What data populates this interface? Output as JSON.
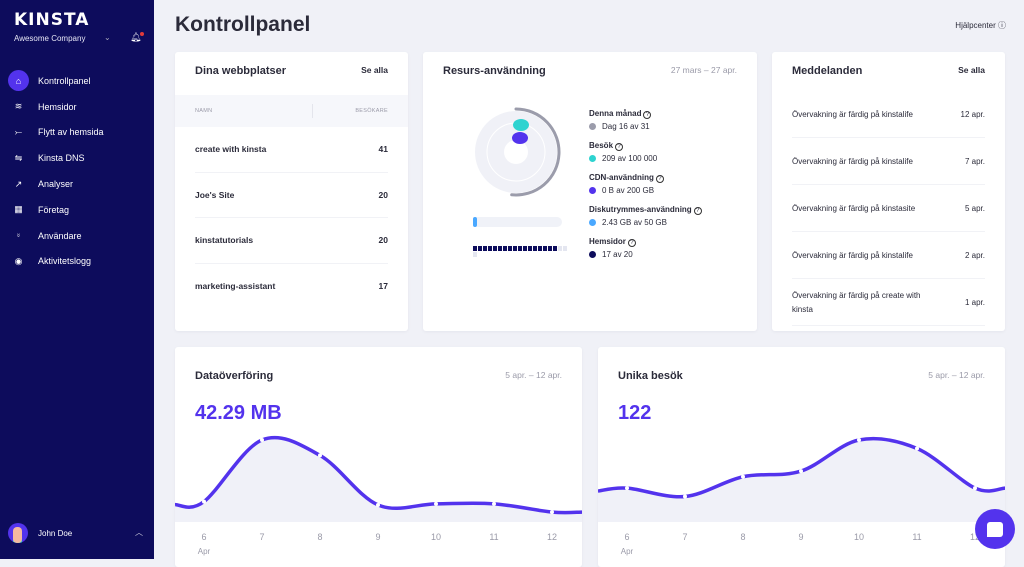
{
  "sidebar": {
    "logo": "KINSTA",
    "company": "Awesome Company",
    "items": [
      {
        "label": "Kontrollpanel",
        "icon": "home-icon",
        "glyph": "⌂"
      },
      {
        "label": "Hemsidor",
        "icon": "layers-icon",
        "glyph": "≋"
      },
      {
        "label": "Flytt av hemsida",
        "icon": "migrate-icon",
        "glyph": "⤚"
      },
      {
        "label": "Kinsta DNS",
        "icon": "dns-icon",
        "glyph": "⇋"
      },
      {
        "label": "Analyser",
        "icon": "trend-icon",
        "glyph": "↗"
      },
      {
        "label": "Företag",
        "icon": "building-icon",
        "glyph": "▦"
      },
      {
        "label": "Användare",
        "icon": "add-user-icon",
        "glyph": "⍤"
      },
      {
        "label": "Aktivitetslogg",
        "icon": "eye-icon",
        "glyph": "◉"
      }
    ],
    "user": "John Doe"
  },
  "header": {
    "title": "Kontrollpanel",
    "help": "Hjälpcenter"
  },
  "sites": {
    "title": "Dina webbplatser",
    "see_all": "Se alla",
    "col_name": "NAMN",
    "col_visitors": "BESÖKARE",
    "rows": [
      {
        "name": "create with kinsta",
        "visitors": "41"
      },
      {
        "name": "Joe's Site",
        "visitors": "20"
      },
      {
        "name": "kinstatutorials",
        "visitors": "20"
      },
      {
        "name": "marketing-assistant",
        "visitors": "17"
      }
    ]
  },
  "resources": {
    "title": "Resurs-användning",
    "range": "27 mars – 27 apr.",
    "items": [
      {
        "label": "Denna månad",
        "value": "Dag 16 av 31",
        "color": "#9b9cab",
        "fraction": 0.516
      },
      {
        "label": "Besök",
        "value": "209 av 100 000",
        "color": "#2ed3d0",
        "fraction": 0.002
      },
      {
        "label": "CDN-användning",
        "value": "0 B av 200 GB",
        "color": "#5333ed",
        "fraction": 0
      },
      {
        "label": "Diskutrymmes-användning",
        "value": "2.43 GB av 50 GB",
        "color": "#4aa8ff",
        "fraction": 0.049
      },
      {
        "label": "Hemsidor",
        "value": "17 av 20",
        "color": "#0d0c5c",
        "fraction": 0.85
      }
    ]
  },
  "messages": {
    "title": "Meddelanden",
    "see_all": "Se alla",
    "items": [
      {
        "text": "Övervakning är färdig på kinstalife",
        "date": "12 apr."
      },
      {
        "text": "Övervakning är färdig på kinstalife",
        "date": "7 apr."
      },
      {
        "text": "Övervakning är färdig på kinstasite",
        "date": "5 apr."
      },
      {
        "text": "Övervakning är färdig på kinstalife",
        "date": "2 apr."
      },
      {
        "text": "Övervakning är färdig på create with kinsta",
        "date": "1 apr."
      }
    ]
  },
  "chart_data": [
    {
      "type": "area",
      "title": "Dataöverföring",
      "range": "5 apr. – 12 apr.",
      "total": "42.29 MB",
      "categories": [
        "6",
        "7",
        "8",
        "9",
        "10",
        "11",
        "12"
      ],
      "month_label": "Apr",
      "values": [
        3.7,
        14.9,
        12.1,
        3.1,
        3.3,
        3.3,
        1.8
      ],
      "color": "#5333ed"
    },
    {
      "type": "area",
      "title": "Unika besök",
      "range": "5 apr. – 12 apr.",
      "total": "122",
      "categories": [
        "6",
        "7",
        "8",
        "9",
        "10",
        "11",
        "12"
      ],
      "month_label": "Apr",
      "values": [
        12,
        9,
        16,
        18,
        29,
        26,
        12
      ],
      "color": "#5333ed"
    }
  ]
}
